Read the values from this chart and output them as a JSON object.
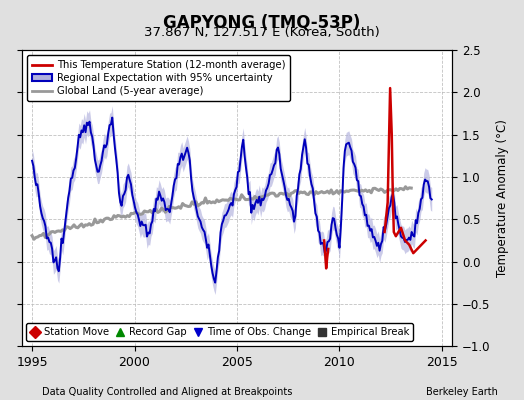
{
  "title": "GAPYONG (TMQ-53P)",
  "subtitle": "37.867 N, 127.517 E (Korea, South)",
  "ylabel": "Temperature Anomaly (°C)",
  "xlabel_left": "Data Quality Controlled and Aligned at Breakpoints",
  "xlabel_right": "Berkeley Earth",
  "xlim": [
    1994.5,
    2015.5
  ],
  "ylim": [
    -1.0,
    2.5
  ],
  "yticks": [
    -1.0,
    -0.5,
    0.0,
    0.5,
    1.0,
    1.5,
    2.0,
    2.5
  ],
  "xticks": [
    1995,
    2000,
    2005,
    2010,
    2015
  ],
  "background_color": "#e0e0e0",
  "plot_background": "#ffffff",
  "grid_color": "#bbbbbb",
  "blue_line_color": "#0000bb",
  "blue_fill_color": "#b0b0dd",
  "red_line_color": "#cc0000",
  "gray_line_color": "#999999",
  "legend_items": [
    "This Temperature Station (12-month average)",
    "Regional Expectation with 95% uncertainty",
    "Global Land (5-year average)"
  ],
  "bottom_legend": [
    {
      "marker": "D",
      "color": "#cc0000",
      "label": "Station Move"
    },
    {
      "marker": "^",
      "color": "#008800",
      "label": "Record Gap"
    },
    {
      "marker": "v",
      "color": "#0000cc",
      "label": "Time of Obs. Change"
    },
    {
      "marker": "s",
      "color": "#333333",
      "label": "Empirical Break"
    }
  ]
}
